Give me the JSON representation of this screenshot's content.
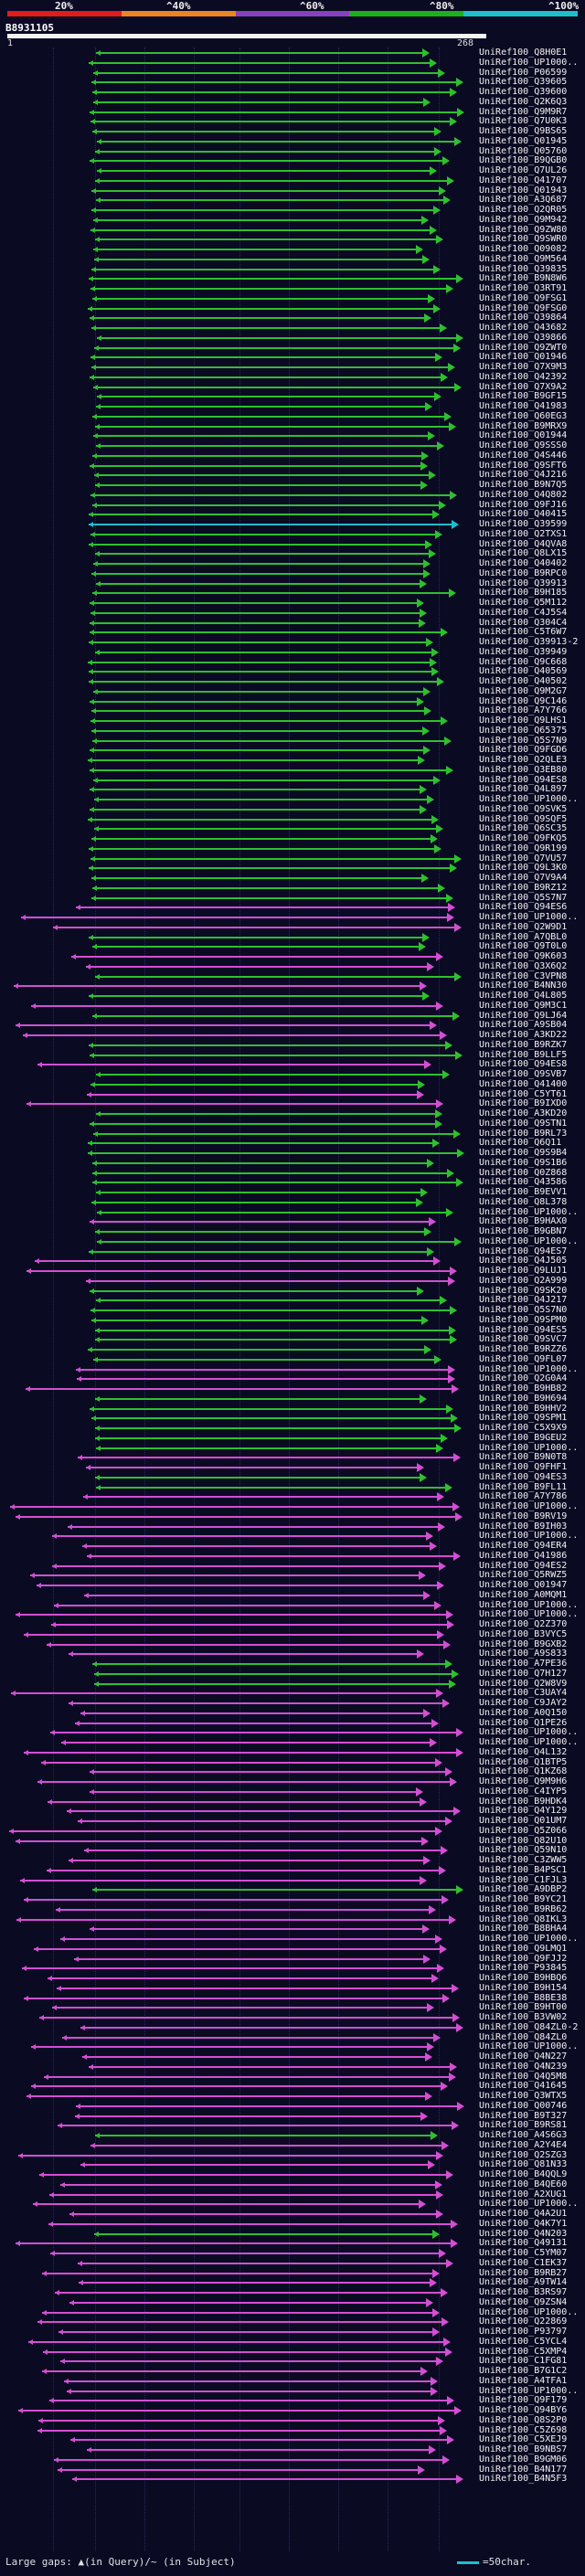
{
  "scale": {
    "ticks": [
      "20%",
      "^40%",
      "^60%",
      "^80%",
      "^100%"
    ],
    "colors": [
      "#e21b1b",
      "#e8871e",
      "#8b3fbf",
      "#1fae1f",
      "#1bbfcf"
    ]
  },
  "query": {
    "id": "B8931105",
    "start": "1",
    "end": "268"
  },
  "hits": [
    {
      "id": "UniRef100_Q8H0E1",
      "color": "#2fbf2f"
    },
    {
      "id": "UniRef100_UP1000..",
      "color": "#2fbf2f"
    },
    {
      "id": "UniRef100_P06599",
      "color": "#2fbf2f"
    },
    {
      "id": "UniRef100_Q39605",
      "color": "#2fbf2f"
    },
    {
      "id": "UniRef100_Q39600",
      "color": "#2fbf2f"
    },
    {
      "id": "UniRef100_Q2K6Q3",
      "color": "#2fbf2f"
    },
    {
      "id": "UniRef100_Q9M9R7",
      "color": "#2fbf2f"
    },
    {
      "id": "UniRef100_Q7U0K3",
      "color": "#2fbf2f"
    },
    {
      "id": "UniRef100_Q9BS65",
      "color": "#2fbf2f"
    },
    {
      "id": "UniRef100_Q01945",
      "color": "#2fbf2f"
    },
    {
      "id": "UniRef100_Q05760",
      "color": "#2fbf2f"
    },
    {
      "id": "UniRef100_B9QGB0",
      "color": "#2fbf2f"
    },
    {
      "id": "UniRef100_Q7UL26",
      "color": "#2fbf2f"
    },
    {
      "id": "UniRef100_Q41707",
      "color": "#2fbf2f"
    },
    {
      "id": "UniRef100_Q01943",
      "color": "#2fbf2f"
    },
    {
      "id": "UniRef100_A3Q687",
      "color": "#2fbf2f"
    },
    {
      "id": "UniRef100_Q2QR05",
      "color": "#2fbf2f"
    },
    {
      "id": "UniRef100_Q9M942",
      "color": "#2fbf2f"
    },
    {
      "id": "UniRef100_Q9ZW80",
      "color": "#2fbf2f"
    },
    {
      "id": "UniRef100_Q9SWR0",
      "color": "#2fbf2f"
    },
    {
      "id": "UniRef100_Q09082",
      "color": "#2fbf2f"
    },
    {
      "id": "UniRef100_Q9M564",
      "color": "#2fbf2f"
    },
    {
      "id": "UniRef100_Q39835",
      "color": "#2fbf2f"
    },
    {
      "id": "UniRef100_B9N8W6",
      "color": "#2fbf2f"
    },
    {
      "id": "UniRef100_Q3RT91",
      "color": "#2fbf2f"
    },
    {
      "id": "UniRef100_Q9FSG1",
      "color": "#2fbf2f"
    },
    {
      "id": "UniRef100_Q9FSG0",
      "color": "#2fbf2f"
    },
    {
      "id": "UniRef100_Q39864",
      "color": "#2fbf2f"
    },
    {
      "id": "UniRef100_Q43682",
      "color": "#2fbf2f"
    },
    {
      "id": "UniRef100_Q39866",
      "color": "#2fbf2f"
    },
    {
      "id": "UniRef100_Q9ZWT0",
      "color": "#2fbf2f"
    },
    {
      "id": "UniRef100_Q01946",
      "color": "#2fbf2f"
    },
    {
      "id": "UniRef100_Q7X9M3",
      "color": "#2fbf2f"
    },
    {
      "id": "UniRef100_Q42392",
      "color": "#2fbf2f"
    },
    {
      "id": "UniRef100_Q7X9A2",
      "color": "#2fbf2f"
    },
    {
      "id": "UniRef100_B9GF15",
      "color": "#2fbf2f"
    },
    {
      "id": "UniRef100_Q41983",
      "color": "#2fbf2f"
    },
    {
      "id": "UniRef100_Q60EG3",
      "color": "#2fbf2f"
    },
    {
      "id": "UniRef100_B9MRX9",
      "color": "#2fbf2f"
    },
    {
      "id": "UniRef100_Q01944",
      "color": "#2fbf2f"
    },
    {
      "id": "UniRef100_Q9SSS0",
      "color": "#2fbf2f"
    },
    {
      "id": "UniRef100_Q4S446",
      "color": "#2fbf2f"
    },
    {
      "id": "UniRef100_Q9SFT6",
      "color": "#2fbf2f"
    },
    {
      "id": "UniRef100_Q4J216",
      "color": "#2fbf2f"
    },
    {
      "id": "UniRef100_B9N7Q5",
      "color": "#2fbf2f"
    },
    {
      "id": "UniRef100_Q4Q802",
      "color": "#2fbf2f"
    },
    {
      "id": "UniRef100_Q9FJ16",
      "color": "#2fbf2f"
    },
    {
      "id": "UniRef100_Q40415",
      "color": "#2fbf2f"
    },
    {
      "id": "UniRef100_Q39599",
      "color": "#1bbfcf"
    },
    {
      "id": "UniRef100_Q2TXS1",
      "color": "#2fbf2f"
    },
    {
      "id": "UniRef100_Q4QVA8",
      "color": "#2fbf2f"
    },
    {
      "id": "UniRef100_Q8LX15",
      "color": "#2fbf2f"
    },
    {
      "id": "UniRef100_Q40402",
      "color": "#2fbf2f"
    },
    {
      "id": "UniRef100_B9RPC0",
      "color": "#2fbf2f"
    },
    {
      "id": "UniRef100_Q39913",
      "color": "#2fbf2f"
    },
    {
      "id": "UniRef100_B9H185",
      "color": "#2fbf2f"
    },
    {
      "id": "UniRef100_Q5M112",
      "color": "#2fbf2f"
    },
    {
      "id": "UniRef100_C4J5S4",
      "color": "#2fbf2f"
    },
    {
      "id": "UniRef100_Q304C4",
      "color": "#2fbf2f"
    },
    {
      "id": "UniRef100_C5T6W7",
      "color": "#2fbf2f"
    },
    {
      "id": "UniRef100_Q39913-2",
      "color": "#2fbf2f"
    },
    {
      "id": "UniRef100_Q39949",
      "color": "#2fbf2f"
    },
    {
      "id": "UniRef100_Q9C668",
      "color": "#2fbf2f"
    },
    {
      "id": "UniRef100_Q40569",
      "color": "#2fbf2f"
    },
    {
      "id": "UniRef100_Q40502",
      "color": "#2fbf2f"
    },
    {
      "id": "UniRef100_Q9M2G7",
      "color": "#2fbf2f"
    },
    {
      "id": "UniRef100_Q9C146",
      "color": "#2fbf2f"
    },
    {
      "id": "UniRef100_A7Y766",
      "color": "#2fbf2f"
    },
    {
      "id": "UniRef100_Q9LHS1",
      "color": "#2fbf2f"
    },
    {
      "id": "UniRef100_Q65375",
      "color": "#2fbf2f"
    },
    {
      "id": "UniRef100_Q5S7N9",
      "color": "#2fbf2f"
    },
    {
      "id": "UniRef100_Q9FGD6",
      "color": "#2fbf2f"
    },
    {
      "id": "UniRef100_Q2QLE3",
      "color": "#2fbf2f"
    },
    {
      "id": "UniRef100_Q3EB80",
      "color": "#2fbf2f"
    },
    {
      "id": "UniRef100_Q94ES8",
      "color": "#2fbf2f"
    },
    {
      "id": "UniRef100_Q4L897",
      "color": "#2fbf2f"
    },
    {
      "id": "UniRef100_UP1000..",
      "color": "#2fbf2f"
    },
    {
      "id": "UniRef100_Q9SVK5",
      "color": "#2fbf2f"
    },
    {
      "id": "UniRef100_Q9SQF5",
      "color": "#2fbf2f"
    },
    {
      "id": "UniRef100_Q6SC35",
      "color": "#2fbf2f"
    },
    {
      "id": "UniRef100_Q9FKQ5",
      "color": "#2fbf2f"
    },
    {
      "id": "UniRef100_Q9R199",
      "color": "#2fbf2f"
    },
    {
      "id": "UniRef100_Q7VU57",
      "color": "#2fbf2f"
    },
    {
      "id": "UniRef100_Q9L3K0",
      "color": "#2fbf2f"
    },
    {
      "id": "UniRef100_Q7V9A4",
      "color": "#2fbf2f"
    },
    {
      "id": "UniRef100_B9RZ12",
      "color": "#2fbf2f"
    },
    {
      "id": "UniRef100_Q5S7N7",
      "color": "#2fbf2f"
    },
    {
      "id": "UniRef100_Q94ES6",
      "color": "#d24fd2"
    },
    {
      "id": "UniRef100_UP1000..",
      "color": "#d24fd2"
    },
    {
      "id": "UniRef100_Q2W9D1",
      "color": "#d24fd2"
    },
    {
      "id": "UniRef100_A7QBL0",
      "color": "#2fbf2f"
    },
    {
      "id": "UniRef100_Q9T0L0",
      "color": "#2fbf2f"
    },
    {
      "id": "UniRef100_Q9K603",
      "color": "#d24fd2"
    },
    {
      "id": "UniRef100_Q3X6Q2",
      "color": "#d24fd2"
    },
    {
      "id": "UniRef100_C3VPN8",
      "color": "#2fbf2f"
    },
    {
      "id": "UniRef100_B4NN30",
      "color": "#d24fd2"
    },
    {
      "id": "UniRef100_Q4L805",
      "color": "#2fbf2f"
    },
    {
      "id": "UniRef100_Q9M3C1",
      "color": "#d24fd2"
    },
    {
      "id": "UniRef100_Q9LJ64",
      "color": "#2fbf2f"
    },
    {
      "id": "UniRef100_A9SB04",
      "color": "#d24fd2"
    },
    {
      "id": "UniRef100_A3KD22",
      "color": "#d24fd2"
    },
    {
      "id": "UniRef100_B9RZK7",
      "color": "#2fbf2f"
    },
    {
      "id": "UniRef100_B9LLF5",
      "color": "#2fbf2f"
    },
    {
      "id": "UniRef100_Q94ES8",
      "color": "#d24fd2"
    },
    {
      "id": "UniRef100_Q9SVB7",
      "color": "#2fbf2f"
    },
    {
      "id": "UniRef100_Q41400",
      "color": "#2fbf2f"
    },
    {
      "id": "UniRef100_C5YT61",
      "color": "#d24fd2"
    },
    {
      "id": "UniRef100_B9IXD0",
      "color": "#d24fd2"
    },
    {
      "id": "UniRef100_A3KD20",
      "color": "#2fbf2f"
    },
    {
      "id": "UniRef100_Q9STN1",
      "color": "#2fbf2f"
    },
    {
      "id": "UniRef100_B9RL73",
      "color": "#2fbf2f"
    },
    {
      "id": "UniRef100_Q6Q11",
      "color": "#2fbf2f"
    },
    {
      "id": "UniRef100_Q9S9B4",
      "color": "#2fbf2f"
    },
    {
      "id": "UniRef100_Q9S1B6",
      "color": "#2fbf2f"
    },
    {
      "id": "UniRef100_Q0Z868",
      "color": "#2fbf2f"
    },
    {
      "id": "UniRef100_Q43586",
      "color": "#2fbf2f"
    },
    {
      "id": "UniRef100_B9EVV1",
      "color": "#2fbf2f"
    },
    {
      "id": "UniRef100_Q8L378",
      "color": "#2fbf2f"
    },
    {
      "id": "UniRef100_UP1000..",
      "color": "#2fbf2f"
    },
    {
      "id": "UniRef100_B9HAX0",
      "color": "#d24fd2"
    },
    {
      "id": "UniRef100_B9GBN7",
      "color": "#2fbf2f"
    },
    {
      "id": "UniRef100_UP1000..",
      "color": "#2fbf2f"
    },
    {
      "id": "UniRef100_Q94ES7",
      "color": "#2fbf2f"
    },
    {
      "id": "UniRef100_Q4J505",
      "color": "#d24fd2"
    },
    {
      "id": "UniRef100_Q9LUJ1",
      "color": "#d24fd2"
    },
    {
      "id": "UniRef100_Q2A999",
      "color": "#d24fd2"
    },
    {
      "id": "UniRef100_Q9SK20",
      "color": "#2fbf2f"
    },
    {
      "id": "UniRef100_Q4J217",
      "color": "#2fbf2f"
    },
    {
      "id": "UniRef100_Q5S7N0",
      "color": "#2fbf2f"
    },
    {
      "id": "UniRef100_Q9SPM0",
      "color": "#2fbf2f"
    },
    {
      "id": "UniRef100_Q94ES5",
      "color": "#2fbf2f"
    },
    {
      "id": "UniRef100_Q9SVC7",
      "color": "#2fbf2f"
    },
    {
      "id": "UniRef100_B9RZZ6",
      "color": "#2fbf2f"
    },
    {
      "id": "UniRef100_Q9FL07",
      "color": "#2fbf2f"
    },
    {
      "id": "UniRef100_UP1000..",
      "color": "#d24fd2"
    },
    {
      "id": "UniRef100_Q2G0A4",
      "color": "#d24fd2"
    },
    {
      "id": "UniRef100_B9HB82",
      "color": "#d24fd2"
    },
    {
      "id": "UniRef100_B9H694",
      "color": "#2fbf2f"
    },
    {
      "id": "UniRef100_B9HHV2",
      "color": "#2fbf2f"
    },
    {
      "id": "UniRef100_Q9SPM1",
      "color": "#2fbf2f"
    },
    {
      "id": "UniRef100_C5X9X9",
      "color": "#2fbf2f"
    },
    {
      "id": "UniRef100_B9GEU2",
      "color": "#2fbf2f"
    },
    {
      "id": "UniRef100_UP1000..",
      "color": "#2fbf2f"
    },
    {
      "id": "UniRef100_B9N0T8",
      "color": "#d24fd2"
    },
    {
      "id": "UniRef100_Q9FHF1",
      "color": "#d24fd2"
    },
    {
      "id": "UniRef100_Q94ES3",
      "color": "#2fbf2f"
    },
    {
      "id": "UniRef100_B9FL11",
      "color": "#2fbf2f"
    },
    {
      "id": "UniRef100_A7Y786",
      "color": "#d24fd2"
    },
    {
      "id": "UniRef100_UP1000..",
      "color": "#d24fd2"
    },
    {
      "id": "UniRef100_B9RV19",
      "color": "#d24fd2"
    },
    {
      "id": "UniRef100_B9IH03",
      "color": "#d24fd2"
    },
    {
      "id": "UniRef100_UP1000..",
      "color": "#d24fd2"
    },
    {
      "id": "UniRef100_Q94ER4",
      "color": "#d24fd2"
    },
    {
      "id": "UniRef100_Q41986",
      "color": "#d24fd2"
    },
    {
      "id": "UniRef100_Q94ES2",
      "color": "#d24fd2"
    },
    {
      "id": "UniRef100_Q5RWZ5",
      "color": "#d24fd2"
    },
    {
      "id": "UniRef100_Q01947",
      "color": "#d24fd2"
    },
    {
      "id": "UniRef100_A0MQM1",
      "color": "#d24fd2"
    },
    {
      "id": "UniRef100_UP1000..",
      "color": "#d24fd2"
    },
    {
      "id": "UniRef100_UP1000..",
      "color": "#d24fd2"
    },
    {
      "id": "UniRef100_Q2Z370",
      "color": "#d24fd2"
    },
    {
      "id": "UniRef100_B3VYC5",
      "color": "#d24fd2"
    },
    {
      "id": "UniRef100_B9GXB2",
      "color": "#d24fd2"
    },
    {
      "id": "UniRef100_A9S833",
      "color": "#d24fd2"
    },
    {
      "id": "UniRef100_A7PE36",
      "color": "#2fbf2f"
    },
    {
      "id": "UniRef100_Q7H127",
      "color": "#2fbf2f"
    },
    {
      "id": "UniRef100_Q2W8V9",
      "color": "#2fbf2f"
    },
    {
      "id": "UniRef100_C3UAY4",
      "color": "#d24fd2"
    },
    {
      "id": "UniRef100_C9JAY2",
      "color": "#d24fd2"
    },
    {
      "id": "UniRef100_A0Q150",
      "color": "#d24fd2"
    },
    {
      "id": "UniRef100_Q1PE26",
      "color": "#d24fd2"
    },
    {
      "id": "UniRef100_UP1000..",
      "color": "#d24fd2"
    },
    {
      "id": "UniRef100_UP1000..",
      "color": "#d24fd2"
    },
    {
      "id": "UniRef100_Q4L132",
      "color": "#d24fd2"
    },
    {
      "id": "UniRef100_Q1BTP5",
      "color": "#d24fd2"
    },
    {
      "id": "UniRef100_Q1KZ68",
      "color": "#d24fd2"
    },
    {
      "id": "UniRef100_Q9M9H6",
      "color": "#d24fd2"
    },
    {
      "id": "UniRef100_C4IYP5",
      "color": "#d24fd2"
    },
    {
      "id": "UniRef100_B9HDK4",
      "color": "#d24fd2"
    },
    {
      "id": "UniRef100_Q4Y129",
      "color": "#d24fd2"
    },
    {
      "id": "UniRef100_Q01UM7",
      "color": "#d24fd2"
    },
    {
      "id": "UniRef100_Q5Z066",
      "color": "#d24fd2"
    },
    {
      "id": "UniRef100_Q82U10",
      "color": "#d24fd2"
    },
    {
      "id": "UniRef100_Q59N10",
      "color": "#d24fd2"
    },
    {
      "id": "UniRef100_C3ZWW5",
      "color": "#d24fd2"
    },
    {
      "id": "UniRef100_B4PSC1",
      "color": "#d24fd2"
    },
    {
      "id": "UniRef100_C1FJL3",
      "color": "#d24fd2"
    },
    {
      "id": "UniRef100_A9DBP2",
      "color": "#2fbf2f"
    },
    {
      "id": "UniRef100_B9YC21",
      "color": "#d24fd2"
    },
    {
      "id": "UniRef100_B9RB62",
      "color": "#d24fd2"
    },
    {
      "id": "UniRef100_Q8IKL3",
      "color": "#d24fd2"
    },
    {
      "id": "UniRef100_B8BHA4",
      "color": "#d24fd2"
    },
    {
      "id": "UniRef100_UP1000..",
      "color": "#d24fd2"
    },
    {
      "id": "UniRef100_Q9LMQ1",
      "color": "#d24fd2"
    },
    {
      "id": "UniRef100_Q9FJJ2",
      "color": "#d24fd2"
    },
    {
      "id": "UniRef100_P93845",
      "color": "#d24fd2"
    },
    {
      "id": "UniRef100_B9HBQ6",
      "color": "#d24fd2"
    },
    {
      "id": "UniRef100_B9H154",
      "color": "#d24fd2"
    },
    {
      "id": "UniRef100_B8BE38",
      "color": "#d24fd2"
    },
    {
      "id": "UniRef100_B9HT00",
      "color": "#d24fd2"
    },
    {
      "id": "UniRef100_B3VW02",
      "color": "#d24fd2"
    },
    {
      "id": "UniRef100_Q84ZL0-2",
      "color": "#d24fd2"
    },
    {
      "id": "UniRef100_Q84ZL0",
      "color": "#d24fd2"
    },
    {
      "id": "UniRef100_UP1000..",
      "color": "#d24fd2"
    },
    {
      "id": "UniRef100_Q4N227",
      "color": "#d24fd2"
    },
    {
      "id": "UniRef100_Q4N239",
      "color": "#d24fd2"
    },
    {
      "id": "UniRef100_Q4Q5M8",
      "color": "#d24fd2"
    },
    {
      "id": "UniRef100_Q41645",
      "color": "#d24fd2"
    },
    {
      "id": "UniRef100_Q3WTX5",
      "color": "#d24fd2"
    },
    {
      "id": "UniRef100_Q00746",
      "color": "#d24fd2"
    },
    {
      "id": "UniRef100_B9T327",
      "color": "#d24fd2"
    },
    {
      "id": "UniRef100_B9RS81",
      "color": "#d24fd2"
    },
    {
      "id": "UniRef100_A4S6G3",
      "color": "#2fbf2f"
    },
    {
      "id": "UniRef100_A2Y4E4",
      "color": "#d24fd2"
    },
    {
      "id": "UniRef100_Q2SZG3",
      "color": "#d24fd2"
    },
    {
      "id": "UniRef100_Q81N33",
      "color": "#d24fd2"
    },
    {
      "id": "UniRef100_B4QQL9",
      "color": "#d24fd2"
    },
    {
      "id": "UniRef100_B4QE60",
      "color": "#d24fd2"
    },
    {
      "id": "UniRef100_A2XUG1",
      "color": "#d24fd2"
    },
    {
      "id": "UniRef100_UP1000..",
      "color": "#d24fd2"
    },
    {
      "id": "UniRef100_Q4A2U1",
      "color": "#d24fd2"
    },
    {
      "id": "UniRef100_Q4K7Y1",
      "color": "#d24fd2"
    },
    {
      "id": "UniRef100_Q4N203",
      "color": "#2fbf2f"
    },
    {
      "id": "UniRef100_Q49131",
      "color": "#d24fd2"
    },
    {
      "id": "UniRef100_C5YM07",
      "color": "#d24fd2"
    },
    {
      "id": "UniRef100_C1EK37",
      "color": "#d24fd2"
    },
    {
      "id": "UniRef100_B9RB27",
      "color": "#d24fd2"
    },
    {
      "id": "UniRef100_A9TW14",
      "color": "#d24fd2"
    },
    {
      "id": "UniRef100_B3RS97",
      "color": "#d24fd2"
    },
    {
      "id": "UniRef100_Q9ZSN4",
      "color": "#d24fd2"
    },
    {
      "id": "UniRef100_UP1000..",
      "color": "#d24fd2"
    },
    {
      "id": "UniRef100_Q22869",
      "color": "#d24fd2"
    },
    {
      "id": "UniRef100_P93797",
      "color": "#d24fd2"
    },
    {
      "id": "UniRef100_C5YCL4",
      "color": "#d24fd2"
    },
    {
      "id": "UniRef100_C5XMP4",
      "color": "#d24fd2"
    },
    {
      "id": "UniRef100_C1FG81",
      "color": "#d24fd2"
    },
    {
      "id": "UniRef100_B7G1C2",
      "color": "#d24fd2"
    },
    {
      "id": "UniRef100_A4TFA1",
      "color": "#d24fd2"
    },
    {
      "id": "UniRef100_UP1000..",
      "color": "#d24fd2"
    },
    {
      "id": "UniRef100_Q9F179",
      "color": "#d24fd2"
    },
    {
      "id": "UniRef100_Q94BY6",
      "color": "#d24fd2"
    },
    {
      "id": "UniRef100_Q8S2P0",
      "color": "#d24fd2"
    },
    {
      "id": "UniRef100_C5Z698",
      "color": "#d24fd2"
    },
    {
      "id": "UniRef100_C5XEJ9",
      "color": "#d24fd2"
    },
    {
      "id": "UniRef100_B9NBS7",
      "color": "#d24fd2"
    },
    {
      "id": "UniRef100_B9GM06",
      "color": "#d24fd2"
    },
    {
      "id": "UniRef100_B4N177",
      "color": "#d24fd2"
    },
    {
      "id": "UniRef100_B4N5F3",
      "color": "#d24fd2"
    }
  ],
  "footer": {
    "gaps_label": "Large gaps: ▲(in Query)/~ (in Subject)",
    "legend_label": "=50char."
  }
}
